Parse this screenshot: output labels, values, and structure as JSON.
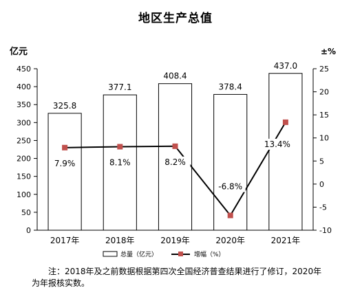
{
  "title": "地区生产总值",
  "chart_data": {
    "type": "bar",
    "title": "地区生产总值",
    "categories": [
      "2017年",
      "2018年",
      "2019年",
      "2020年",
      "2021年"
    ],
    "series": [
      {
        "name": "总量（亿元）",
        "type": "bar",
        "axis": "left",
        "values": [
          325.8,
          377.1,
          408.4,
          378.4,
          437.0
        ],
        "labels": [
          "325.8",
          "377.1",
          "408.4",
          "378.4",
          "437.0"
        ]
      },
      {
        "name": "增幅（%）",
        "type": "line",
        "axis": "right",
        "values": [
          7.9,
          8.1,
          8.2,
          -6.8,
          13.4
        ],
        "labels": [
          "7.9%",
          "8.1%",
          "8.2%",
          "-6.8%",
          "13.4%"
        ]
      }
    ],
    "ylabel_left": "亿元",
    "ylabel_right": "±%",
    "ylim_left": [
      0,
      450
    ],
    "ylim_right": [
      -10,
      25
    ],
    "yticks_left": [
      "0",
      "50",
      "100",
      "150",
      "200",
      "250",
      "300",
      "350",
      "400",
      "450"
    ],
    "yticks_right": [
      "-10",
      "-5",
      "0",
      "5",
      "10",
      "15",
      "20",
      "25"
    ],
    "grid": false,
    "legend_position": "bottom",
    "colors": {
      "bar_fill": "#ffffff",
      "bar_stroke": "#000000",
      "line": "#000000",
      "marker": "#c0504d"
    }
  },
  "note": {
    "line1": "注：2018年及之前数据根据第四次全国经济普查结果进行了修订，2020年",
    "line2": "为年报核实数。"
  }
}
